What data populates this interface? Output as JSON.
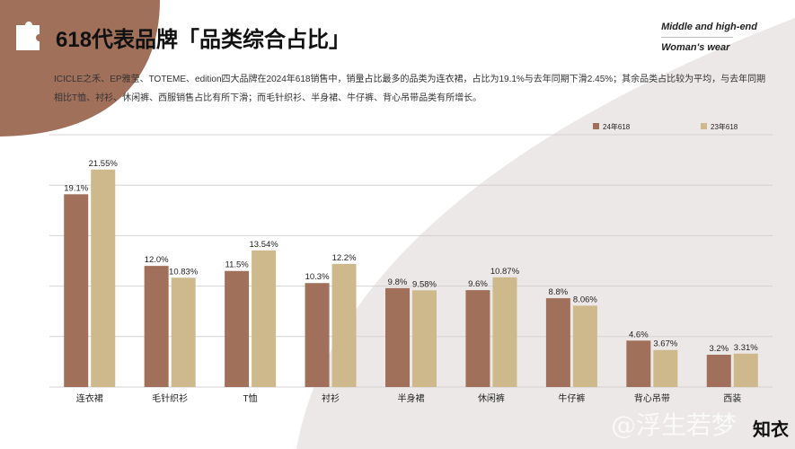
{
  "header": {
    "title": "618代表品牌「品类综合占比」",
    "tagline_line1": "Middle and high-end",
    "tagline_line2": "Woman's wear",
    "icon": "puzzle-icon"
  },
  "description": "ICICLE之禾、EP雅莹、TOTEME、edition四大品牌在2024年618销售中，销量占比最多的品类为连衣裙，占比为19.1%与去年同期下滑2.45%；其余品类占比较为平均，与去年同期相比T恤、衬衫、休闲裤、西服销售占比有所下滑；而毛针织衫、半身裙、牛仔裤、背心吊带品类有所增长。",
  "watermark": "@浮生若梦",
  "logo": "知衣",
  "colors": {
    "series1": "#a0705a",
    "series2": "#cdb98c",
    "accent": "#a0705a",
    "background_gray": "#ece8e8"
  },
  "chart_data": {
    "type": "bar",
    "categories": [
      "连衣裙",
      "毛针织衫",
      "T恤",
      "衬衫",
      "半身裙",
      "休闲裤",
      "牛仔裤",
      "背心吊带",
      "西装"
    ],
    "series": [
      {
        "name": "24年618",
        "values": [
          19.1,
          12.0,
          11.5,
          10.3,
          9.8,
          9.6,
          8.8,
          4.6,
          3.2
        ],
        "labels": [
          "19.1%",
          "12.0%",
          "11.5%",
          "10.3%",
          "9.8%",
          "9.6%",
          "8.8%",
          "4.6%",
          "3.2%"
        ],
        "color": "#a0705a"
      },
      {
        "name": "23年618",
        "values": [
          21.55,
          10.83,
          13.54,
          12.2,
          9.58,
          10.87,
          8.06,
          3.67,
          3.31
        ],
        "labels": [
          "21.55%",
          "10.83%",
          "13.54%",
          "12.2%",
          "9.58%",
          "10.87%",
          "8.06%",
          "3.67%",
          "3.31%"
        ],
        "color": "#cdb98c"
      }
    ],
    "ylim": [
      0,
      25
    ],
    "grid": true,
    "legend": "top-right"
  }
}
